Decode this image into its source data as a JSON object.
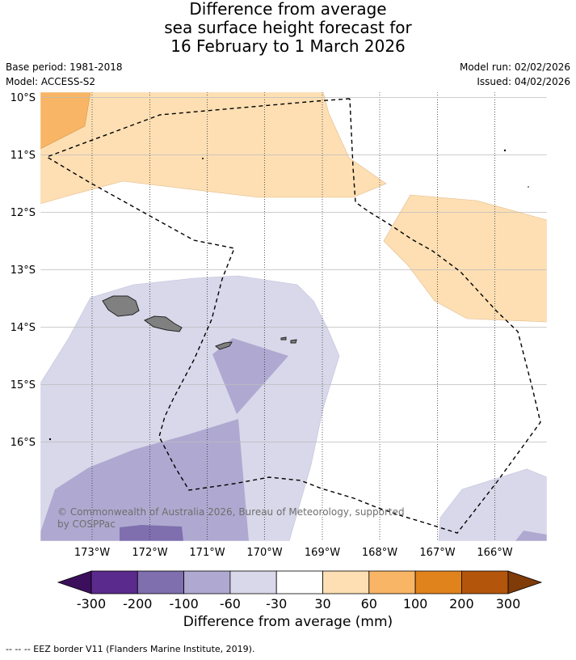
{
  "title": {
    "line1": "Difference from average",
    "line2": "sea surface height forecast for",
    "line3": "16 February to 1 March 2026"
  },
  "meta": {
    "base_period": "Base period: 1981-2018",
    "model": "Model: ACCESS-S2",
    "model_run": "Model run: 02/02/2026",
    "issued": "Issued: 04/02/2026"
  },
  "axes": {
    "lat_labels": [
      "10°S",
      "11°S",
      "12°S",
      "13°S",
      "14°S",
      "15°S",
      "16°S"
    ],
    "lon_labels": [
      "173°W",
      "172°W",
      "171°W",
      "170°W",
      "169°W",
      "168°W",
      "167°W",
      "166°W"
    ]
  },
  "copyright": "© Commonwealth of Australia 2026, Bureau of Meteorology, supported by COSPPac",
  "colorbar": {
    "title": "Difference from average (mm)",
    "tick_labels": [
      "-300",
      "-200",
      "-100",
      "-60",
      "-30",
      "30",
      "60",
      "100",
      "200",
      "300"
    ],
    "colors": {
      "below": "#3b0f5c",
      "bins": [
        "#5a2a8c",
        "#7f6fae",
        "#afa9d1",
        "#d8d8ea",
        "#ffffff",
        "#fddfb3",
        "#f8b565",
        "#e1831d",
        "#b3560c"
      ],
      "above": "#7f3b08"
    }
  },
  "legend": {
    "eez": "--  --  -- EEZ border V11 (Flanders Marine Institute, 2019)."
  },
  "regions": {
    "orange_light": "#fddfb3",
    "orange_mid": "#f8b565",
    "purple_light": "#d8d8ea",
    "purple_mid": "#afa9d1",
    "purple_dark": "#7f6fae",
    "land": "#808080"
  }
}
